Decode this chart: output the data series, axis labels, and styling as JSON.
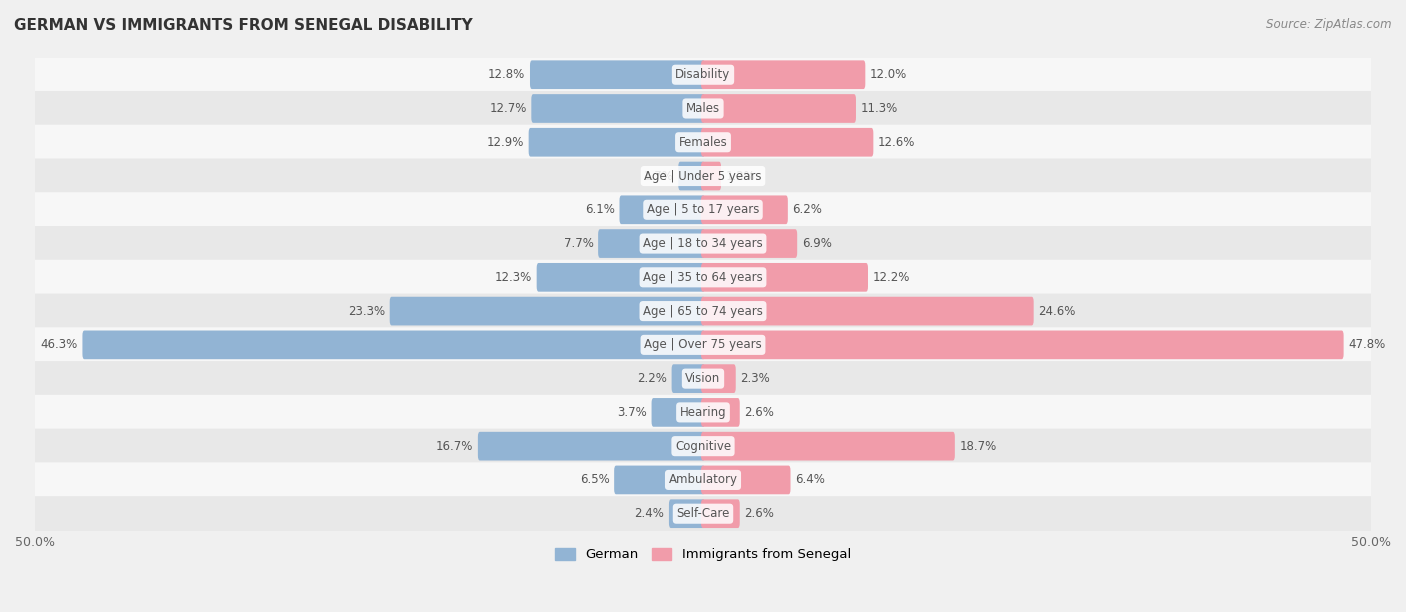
{
  "title": "GERMAN VS IMMIGRANTS FROM SENEGAL DISABILITY",
  "source": "Source: ZipAtlas.com",
  "categories": [
    "Disability",
    "Males",
    "Females",
    "Age | Under 5 years",
    "Age | 5 to 17 years",
    "Age | 18 to 34 years",
    "Age | 35 to 64 years",
    "Age | 65 to 74 years",
    "Age | Over 75 years",
    "Vision",
    "Hearing",
    "Cognitive",
    "Ambulatory",
    "Self-Care"
  ],
  "german_values": [
    12.8,
    12.7,
    12.9,
    1.7,
    6.1,
    7.7,
    12.3,
    23.3,
    46.3,
    2.2,
    3.7,
    16.7,
    6.5,
    2.4
  ],
  "immigrant_values": [
    12.0,
    11.3,
    12.6,
    1.2,
    6.2,
    6.9,
    12.2,
    24.6,
    47.8,
    2.3,
    2.6,
    18.7,
    6.4,
    2.6
  ],
  "german_color": "#92b4d4",
  "immigrant_color": "#f19caa",
  "german_color_dark": "#5a8fc0",
  "immigrant_color_dark": "#e8647a",
  "axis_max": 50.0,
  "x_tick_label": "50.0%",
  "background_color": "#f0f0f0",
  "row_color_light": "#f7f7f7",
  "row_color_dark": "#e8e8e8",
  "title_fontsize": 11,
  "label_fontsize": 8.5,
  "value_fontsize": 8.5,
  "legend_german": "German",
  "legend_immigrant": "Immigrants from Senegal"
}
